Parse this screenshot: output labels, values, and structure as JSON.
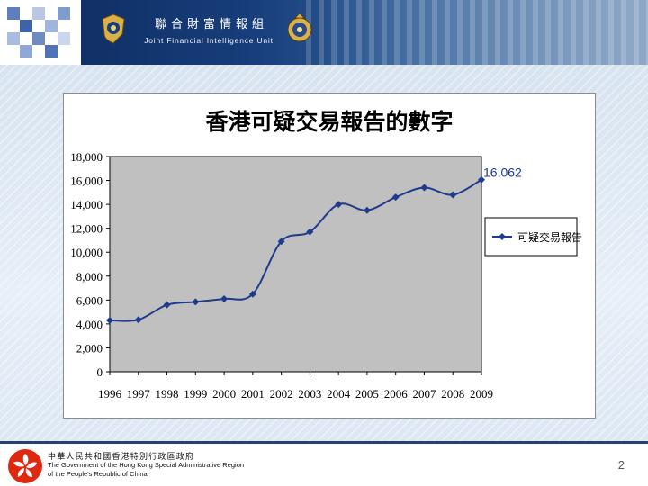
{
  "header": {
    "unit_name_zh": "聯合財富情報組",
    "unit_name_en": "Joint Financial Intelligence Unit"
  },
  "chart_data": {
    "type": "line",
    "title": "香港可疑交易報告的數字",
    "categories": [
      "1996",
      "1997",
      "1998",
      "1999",
      "2000",
      "2001",
      "2002",
      "2003",
      "2004",
      "2005",
      "2006",
      "2007",
      "2008",
      "2009"
    ],
    "series": [
      {
        "name": "可疑交易報告",
        "values": [
          4300,
          4350,
          5600,
          5850,
          6100,
          6500,
          10900,
          11700,
          14000,
          13500,
          14600,
          15400,
          14800,
          16062
        ],
        "color": "#1f3b8c"
      }
    ],
    "ylim": [
      0,
      18000
    ],
    "y_ticks": [
      "0",
      "2,000",
      "4,000",
      "6,000",
      "8,000",
      "10,000",
      "12,000",
      "14,000",
      "16,000",
      "18,000"
    ],
    "annotation": "16,062",
    "grid": false,
    "plot_background": "#c0c0c0",
    "legend_position": "right"
  },
  "footer": {
    "gov_name_zh": "中華人民共和國香港特別行政區政府",
    "gov_name_en_line1": "The Government of the Hong Kong Special Administrative Region",
    "gov_name_en_line2": "of the People's Republic of China",
    "page_number": "2"
  }
}
